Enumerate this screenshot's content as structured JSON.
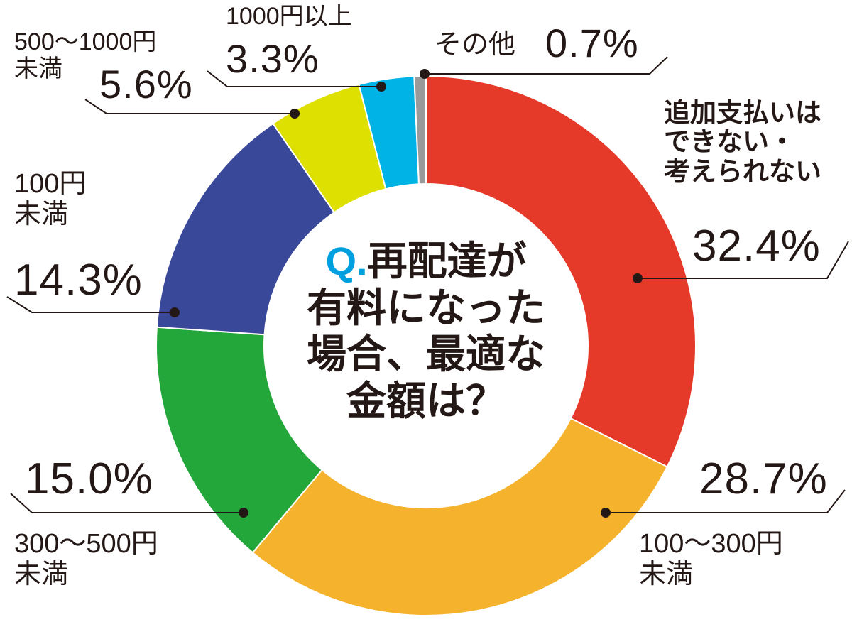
{
  "chart_data": {
    "type": "donut",
    "question_prefix": "Q.",
    "title": "再配達が\n有料になった\n場合、最適な\n金額は？",
    "categories": [
      "追加支払いは\nできない・\n考えられない",
      "100〜300円\n未満",
      "300〜500円\n未満",
      "100円\n未満",
      "500〜1000円\n未満",
      "1000円以上",
      "その他"
    ],
    "values": [
      32.4,
      28.7,
      15.0,
      14.3,
      5.6,
      3.3,
      0.7
    ],
    "value_labels": [
      "32.4%",
      "28.7%",
      "15.0%",
      "14.3%",
      "5.6%",
      "3.3%",
      "0.7%"
    ],
    "colors": [
      "#e53a2a",
      "#f5b22d",
      "#23a73b",
      "#394899",
      "#dde000",
      "#00b3e6",
      "#9a9a9a"
    ]
  }
}
